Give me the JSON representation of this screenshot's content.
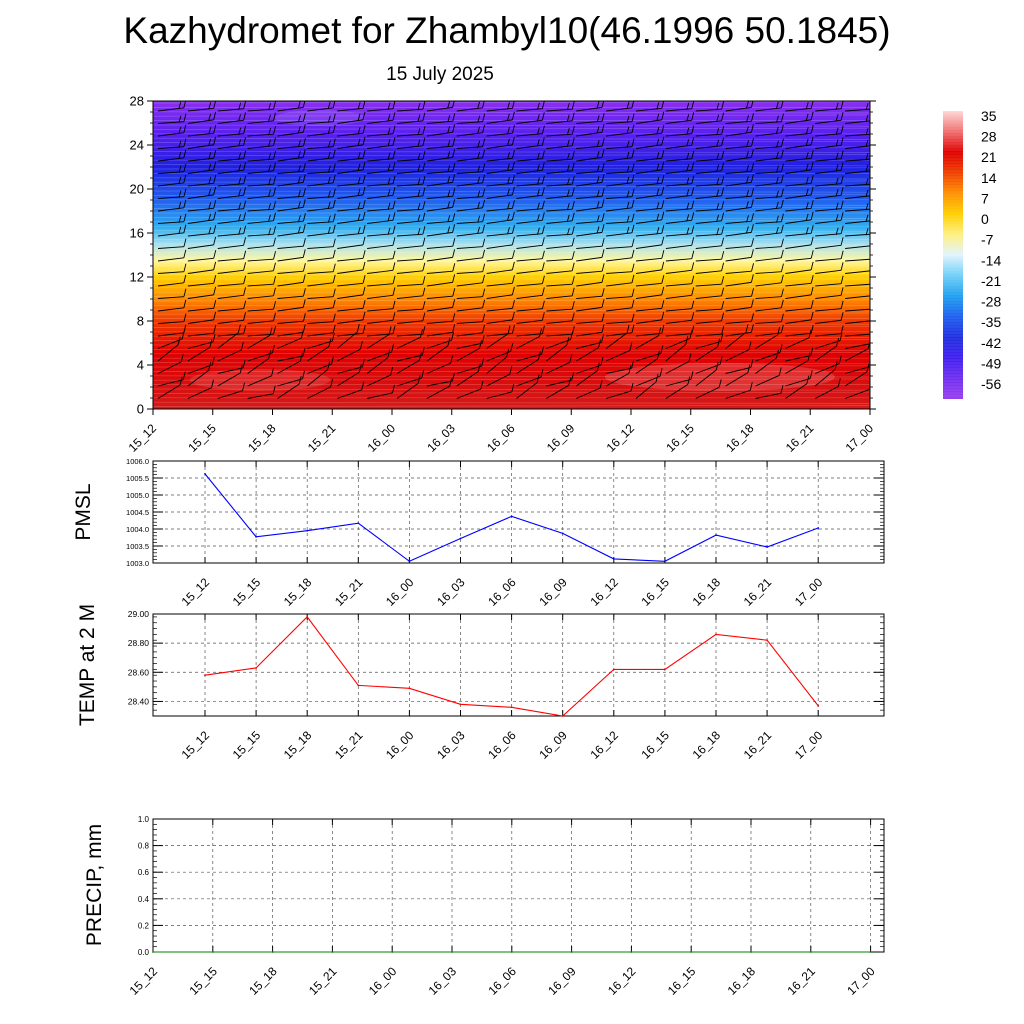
{
  "header": {
    "title": "Kazhydromet for Zhambyl10(46.1996 50.1845)",
    "date": "15 July 2025"
  },
  "chart_data": [
    {
      "type": "heatmap",
      "description_of_panel": "temperature cross-section with wind barbs",
      "x_ticks": [
        "15_12",
        "15_15",
        "15_18",
        "15_21",
        "16_00",
        "16_03",
        "16_06",
        "16_09",
        "16_12",
        "16_15",
        "16_18",
        "16_21",
        "17_00"
      ],
      "y_ticks": [
        0,
        4,
        8,
        12,
        16,
        20,
        24,
        28
      ],
      "ylim": [
        0,
        28
      ],
      "colorbar_labels": [
        "35",
        "28",
        "21",
        "14",
        "7",
        "0",
        "-7",
        "-14",
        "-21",
        "-28",
        "-35",
        "-42",
        "-49",
        "-56"
      ],
      "color_bands": [
        {
          "level": 0,
          "color": "#d41a1a"
        },
        {
          "level": 5,
          "color": "#e00000"
        },
        {
          "level": 8,
          "color": "#f03a00"
        },
        {
          "level": 10,
          "color": "#ff8a00"
        },
        {
          "level": 12,
          "color": "#ffd000"
        },
        {
          "level": 13.5,
          "color": "#fff7a0"
        },
        {
          "level": 15,
          "color": "#a8e0f0"
        },
        {
          "level": 16.5,
          "color": "#30b0f0"
        },
        {
          "level": 19,
          "color": "#2060f0"
        },
        {
          "level": 22,
          "color": "#2020e0"
        },
        {
          "level": 25,
          "color": "#5a20f0"
        },
        {
          "level": 28,
          "color": "#8a30f0"
        }
      ],
      "colorbar_colors": [
        "#ffd8d8",
        "#f07070",
        "#e00000",
        "#f04000",
        "#ff9000",
        "#ffd000",
        "#fff080",
        "#e0f4ff",
        "#70d0f8",
        "#20a0f0",
        "#2060f0",
        "#2030e0",
        "#4020f0",
        "#7030f0",
        "#9a40f0"
      ]
    },
    {
      "type": "line",
      "ylabel": "PMSL",
      "x": [
        "15_12",
        "15_15",
        "15_18",
        "15_21",
        "16_00",
        "16_03",
        "16_06",
        "16_09",
        "16_12",
        "16_15",
        "16_18",
        "16_21",
        "17_00"
      ],
      "y_ticks": [
        "1006.0",
        "1005.5",
        "1005.0",
        "1004.5",
        "1004.0",
        "1003.5",
        "1003.0"
      ],
      "ylim": [
        1003.0,
        1006.0
      ],
      "series": [
        {
          "values": [
            1005.62,
            1003.77,
            1003.95,
            1004.17,
            1003.05,
            1003.72,
            1004.37,
            1003.87,
            1003.12,
            1003.05,
            1003.82,
            1003.47,
            1004.03
          ],
          "color": "#0000ff"
        }
      ]
    },
    {
      "type": "line",
      "ylabel": "TEMP at 2 M",
      "x": [
        "15_12",
        "15_15",
        "15_18",
        "15_21",
        "16_00",
        "16_03",
        "16_06",
        "16_09",
        "16_12",
        "16_15",
        "16_18",
        "16_21",
        "17_00"
      ],
      "y_ticks": [
        "29.00",
        "28.80",
        "28.60",
        "28.40"
      ],
      "ylim": [
        28.3,
        29.0
      ],
      "series": [
        {
          "values": [
            28.58,
            28.63,
            28.98,
            28.51,
            28.49,
            28.38,
            28.36,
            28.3,
            28.62,
            28.62,
            28.86,
            28.82,
            28.37
          ],
          "color": "#ff0000"
        }
      ]
    },
    {
      "type": "line",
      "ylabel": "PRECIP, mm",
      "x": [
        "15_12",
        "15_15",
        "15_18",
        "15_21",
        "16_00",
        "16_03",
        "16_06",
        "16_09",
        "16_12",
        "16_15",
        "16_18",
        "16_21",
        "17_00"
      ],
      "y_ticks": [
        "1.0",
        "0.8",
        "0.6",
        "0.4",
        "0.2",
        "0.0"
      ],
      "ylim": [
        0.0,
        1.0
      ],
      "series": [
        {
          "values": [
            0,
            0,
            0,
            0,
            0,
            0,
            0,
            0,
            0,
            0,
            0,
            0,
            0
          ],
          "color": "#008000"
        }
      ]
    }
  ]
}
